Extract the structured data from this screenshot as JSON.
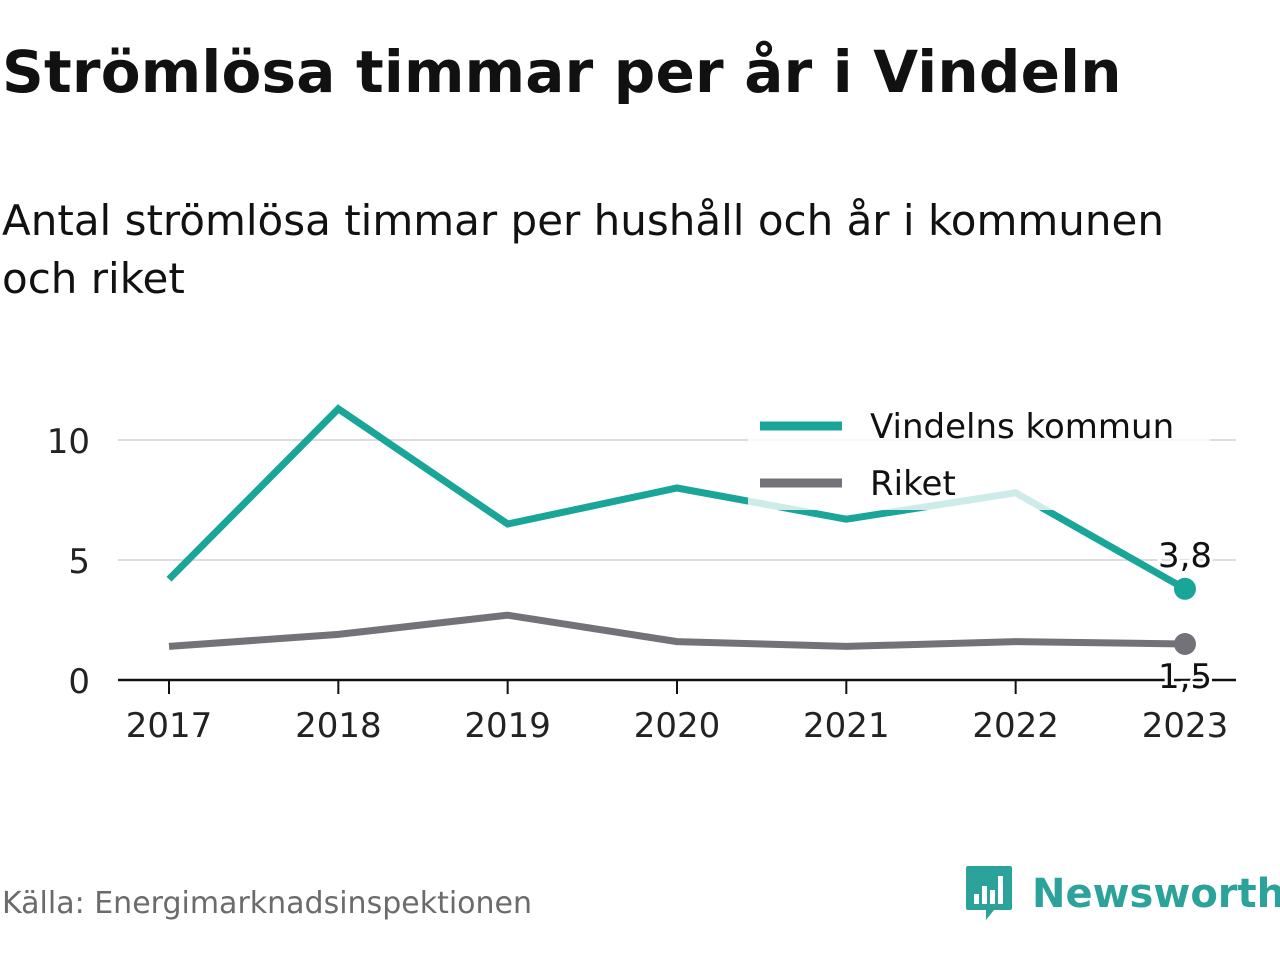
{
  "title": "Strömlösa timmar per år i Vindeln",
  "subtitle": "Antal strömlösa timmar per hushåll och år i kommunen och riket",
  "source": "Källa: Energimarknadsinspektionen",
  "brand": "Newsworthy",
  "brand_icon": "bar-chart-logo-icon",
  "colors": {
    "vindeln": "#1aa599",
    "riket": "#737278",
    "grid": "#dddddd",
    "axis": "#111111",
    "brand": "#2ba39a"
  },
  "chart_data": {
    "type": "line",
    "x": [
      "2017",
      "2018",
      "2019",
      "2020",
      "2021",
      "2022",
      "2023"
    ],
    "series": [
      {
        "name": "Vindelns kommun",
        "values": [
          4.2,
          11.3,
          6.5,
          8.0,
          6.7,
          7.8,
          3.8
        ]
      },
      {
        "name": "Riket",
        "values": [
          1.4,
          1.9,
          2.7,
          1.6,
          1.4,
          1.6,
          1.5
        ]
      }
    ],
    "end_labels": [
      "3,8",
      "1,5"
    ],
    "yticks": [
      0,
      5,
      10
    ],
    "ylim": [
      0,
      11.5
    ],
    "grid": true,
    "legend": "top-right"
  }
}
